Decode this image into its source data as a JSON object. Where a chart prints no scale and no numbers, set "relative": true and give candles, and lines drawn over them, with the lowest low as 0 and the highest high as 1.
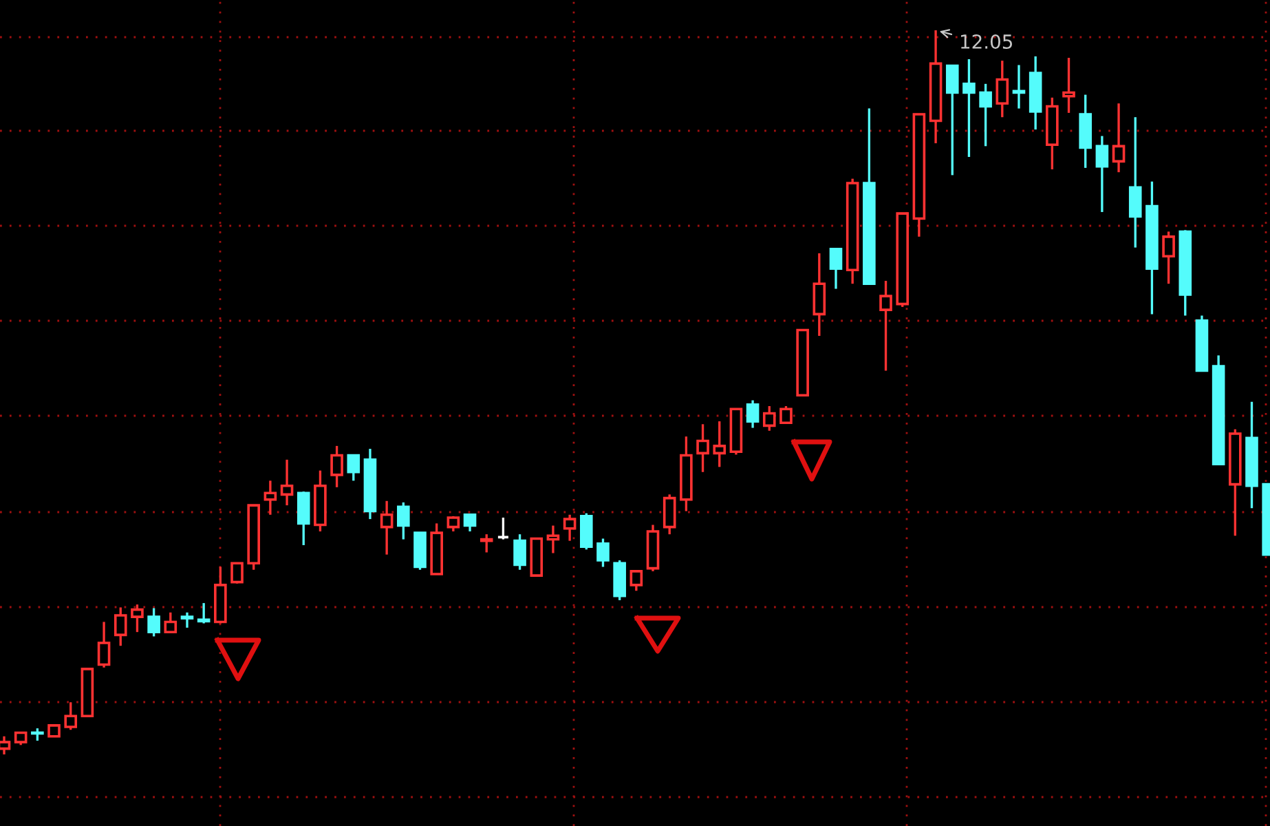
{
  "chart_data": {
    "type": "candlestick",
    "relative": true,
    "grid": true,
    "categories": [
      null,
      null,
      null,
      null,
      null,
      null,
      null,
      null,
      null,
      null,
      null,
      null,
      null,
      null,
      null,
      null,
      null,
      null,
      null,
      null,
      null,
      null,
      null,
      null,
      null,
      null,
      null,
      null,
      null,
      null,
      null,
      null,
      null,
      null,
      null,
      null,
      null,
      null,
      null,
      null,
      null,
      null,
      null,
      null,
      null,
      null,
      null,
      null,
      null,
      null,
      null,
      null,
      null,
      null,
      null,
      null,
      null,
      null,
      null,
      null,
      null,
      null,
      null,
      null,
      null,
      null,
      null,
      null,
      null,
      null,
      null,
      null,
      null,
      null,
      null,
      null,
      null
    ],
    "ohlc": [
      [
        0.008,
        0.025,
        0,
        0.017
      ],
      [
        0.017,
        0.03,
        0.013,
        0.03
      ],
      [
        0.03,
        0.036,
        0.019,
        0.029
      ],
      [
        0.025,
        0.04,
        0.025,
        0.04
      ],
      [
        0.038,
        0.072,
        0.034,
        0.053
      ],
      [
        0.053,
        0.118,
        0.053,
        0.118
      ],
      [
        0.124,
        0.183,
        0.12,
        0.154
      ],
      [
        0.165,
        0.203,
        0.15,
        0.192
      ],
      [
        0.19,
        0.207,
        0.169,
        0.2
      ],
      [
        0.19,
        0.202,
        0.163,
        0.169
      ],
      [
        0.169,
        0.196,
        0.169,
        0.183
      ],
      [
        0.19,
        0.196,
        0.175,
        0.188
      ],
      [
        0.186,
        0.209,
        0.181,
        0.184
      ],
      [
        0.183,
        0.259,
        0.181,
        0.234
      ],
      [
        0.238,
        0.264,
        0.236,
        0.264
      ],
      [
        0.264,
        0.344,
        0.255,
        0.344
      ],
      [
        0.352,
        0.378,
        0.331,
        0.361
      ],
      [
        0.359,
        0.407,
        0.344,
        0.371
      ],
      [
        0.361,
        0.363,
        0.289,
        0.319
      ],
      [
        0.317,
        0.392,
        0.308,
        0.371
      ],
      [
        0.386,
        0.426,
        0.369,
        0.413
      ],
      [
        0.413,
        0.413,
        0.378,
        0.39
      ],
      [
        0.407,
        0.422,
        0.325,
        0.336
      ],
      [
        0.314,
        0.35,
        0.276,
        0.331
      ],
      [
        0.342,
        0.348,
        0.297,
        0.316
      ],
      [
        0.306,
        0.306,
        0.255,
        0.259
      ],
      [
        0.249,
        0.319,
        0.249,
        0.306
      ],
      [
        0.314,
        0.329,
        0.308,
        0.327
      ],
      [
        0.331,
        0.331,
        0.308,
        0.316
      ],
      [
        0.295,
        0.304,
        0.279,
        0.297
      ],
      [
        0.3,
        0.327,
        0.297,
        0.3
      ],
      [
        0.295,
        0.304,
        0.255,
        0.262
      ],
      [
        0.247,
        0.298,
        0.247,
        0.298
      ],
      [
        0.297,
        0.316,
        0.278,
        0.302
      ],
      [
        0.312,
        0.331,
        0.295,
        0.325
      ],
      [
        0.329,
        0.333,
        0.283,
        0.287
      ],
      [
        0.291,
        0.298,
        0.259,
        0.268
      ],
      [
        0.264,
        0.268,
        0.213,
        0.219
      ],
      [
        0.234,
        0.253,
        0.226,
        0.253
      ],
      [
        0.257,
        0.317,
        0.253,
        0.308
      ],
      [
        0.314,
        0.359,
        0.304,
        0.354
      ],
      [
        0.352,
        0.439,
        0.336,
        0.413
      ],
      [
        0.416,
        0.456,
        0.39,
        0.433
      ],
      [
        0.416,
        0.46,
        0.397,
        0.426
      ],
      [
        0.418,
        0.477,
        0.414,
        0.477
      ],
      [
        0.483,
        0.489,
        0.451,
        0.46
      ],
      [
        0.454,
        0.481,
        0.447,
        0.471
      ],
      [
        0.458,
        0.481,
        0.458,
        0.477
      ],
      [
        0.496,
        0.586,
        0.496,
        0.586
      ],
      [
        0.608,
        0.692,
        0.578,
        0.65
      ],
      [
        0.698,
        0.698,
        0.643,
        0.671
      ],
      [
        0.669,
        0.795,
        0.65,
        0.789
      ],
      [
        0.789,
        0.892,
        0.65,
        0.65
      ],
      [
        0.614,
        0.654,
        0.53,
        0.633
      ],
      [
        0.622,
        0.747,
        0.618,
        0.747
      ],
      [
        0.74,
        0.884,
        0.715,
        0.884
      ],
      [
        0.875,
        1.0,
        0.844,
        0.954
      ],
      [
        0.951,
        0.952,
        0.8,
        0.914
      ],
      [
        0.926,
        0.96,
        0.825,
        0.914
      ],
      [
        0.914,
        0.926,
        0.84,
        0.895
      ],
      [
        0.899,
        0.958,
        0.88,
        0.932
      ],
      [
        0.916,
        0.952,
        0.892,
        0.914
      ],
      [
        0.941,
        0.964,
        0.863,
        0.888
      ],
      [
        0.842,
        0.907,
        0.808,
        0.895
      ],
      [
        0.909,
        0.962,
        0.886,
        0.914
      ],
      [
        0.884,
        0.911,
        0.81,
        0.838
      ],
      [
        0.84,
        0.854,
        0.749,
        0.812
      ],
      [
        0.819,
        0.899,
        0.804,
        0.84
      ],
      [
        0.783,
        0.88,
        0.7,
        0.743
      ],
      [
        0.757,
        0.791,
        0.608,
        0.671
      ],
      [
        0.688,
        0.722,
        0.65,
        0.715
      ],
      [
        0.722,
        0.724,
        0.606,
        0.635
      ],
      [
        0.599,
        0.606,
        0.53,
        0.53
      ],
      [
        0.536,
        0.551,
        0.401,
        0.401
      ],
      [
        0.373,
        0.449,
        0.302,
        0.443
      ],
      [
        0.437,
        0.487,
        0.34,
        0.371
      ],
      [
        0.373,
        0.373,
        0.276,
        0.276
      ]
    ],
    "colors": [
      "#ff3232",
      "#ff3232",
      "#54fcfc",
      "#ff3232",
      "#ff3232",
      "#ff3232",
      "#ff3232",
      "#ff3232",
      "#ff3232",
      "#54fcfc",
      "#ff3232",
      "#54fcfc",
      "#54fcfc",
      "#ff3232",
      "#ff3232",
      "#ff3232",
      "#ff3232",
      "#ff3232",
      "#54fcfc",
      "#ff3232",
      "#ff3232",
      "#54fcfc",
      "#54fcfc",
      "#ff3232",
      "#54fcfc",
      "#54fcfc",
      "#ff3232",
      "#ff3232",
      "#54fcfc",
      "#ff3232",
      "#ffffff",
      "#54fcfc",
      "#ff3232",
      "#ff3232",
      "#ff3232",
      "#54fcfc",
      "#54fcfc",
      "#54fcfc",
      "#ff3232",
      "#ff3232",
      "#ff3232",
      "#ff3232",
      "#ff3232",
      "#ff3232",
      "#ff3232",
      "#54fcfc",
      "#ff3232",
      "#ff3232",
      "#ff3232",
      "#ff3232",
      "#54fcfc",
      "#ff3232",
      "#54fcfc",
      "#ff3232",
      "#ff3232",
      "#ff3232",
      "#ff3232",
      "#54fcfc",
      "#54fcfc",
      "#54fcfc",
      "#ff3232",
      "#54fcfc",
      "#54fcfc",
      "#ff3232",
      "#ff3232",
      "#54fcfc",
      "#54fcfc",
      "#ff3232",
      "#54fcfc",
      "#54fcfc",
      "#ff3232",
      "#54fcfc",
      "#54fcfc",
      "#54fcfc",
      "#ff3232",
      "#54fcfc",
      "#54fcfc"
    ],
    "annotations": [
      "12.05"
    ]
  }
}
